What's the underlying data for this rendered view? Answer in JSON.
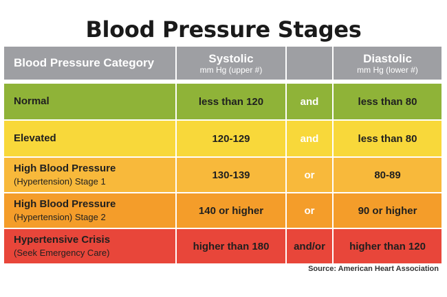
{
  "title": "Blood Pressure Stages",
  "header": {
    "category": "Blood Pressure Category",
    "systolic": "Systolic",
    "systolic_sub": "mm Hg (upper #)",
    "diastolic": "Diastolic",
    "diastolic_sub": "mm Hg (lower #)"
  },
  "rows": [
    {
      "category": "Normal",
      "category_sub": "",
      "systolic": "less than 120",
      "connector": "and",
      "diastolic": "less than 80",
      "color": "#8fb338"
    },
    {
      "category": "Elevated",
      "category_sub": "",
      "systolic": "120-129",
      "connector": "and",
      "diastolic": "less than 80",
      "color": "#f8d83a"
    },
    {
      "category": "High Blood Pressure",
      "category_sub": "(Hypertension) Stage 1",
      "systolic": "130-139",
      "connector": "or",
      "diastolic": "80-89",
      "color": "#f8b93b"
    },
    {
      "category": "High Blood Pressure",
      "category_sub": "(Hypertension) Stage 2",
      "systolic": "140 or higher",
      "connector": "or",
      "diastolic": "90 or higher",
      "color": "#f49d2a"
    },
    {
      "category": "Hypertensive Crisis",
      "category_sub": "(Seek Emergency Care)",
      "systolic": "higher than 180",
      "connector": "and/or",
      "diastolic": "higher than 120",
      "color": "#e8463a"
    }
  ],
  "source": "Source: American Heart Association"
}
